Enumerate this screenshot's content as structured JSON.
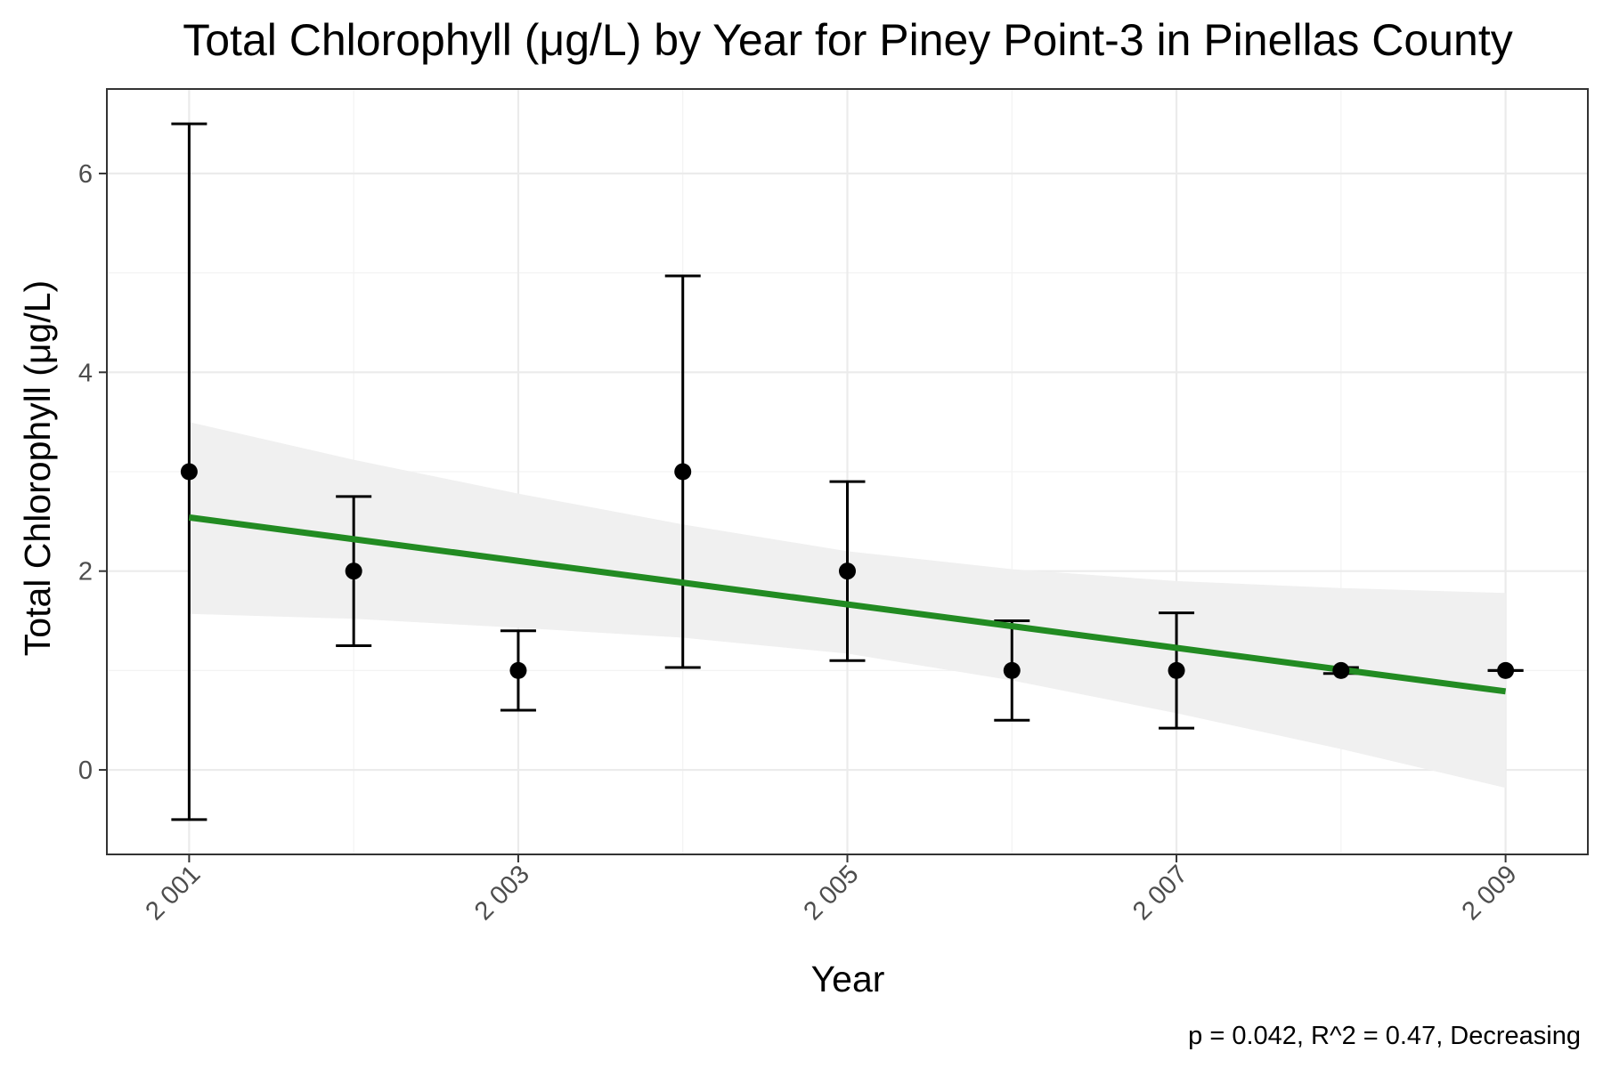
{
  "chart_data": {
    "type": "scatter",
    "title": "Total Chlorophyll (μg/L) by Year for Piney Point-3 in Pinellas County",
    "xlabel": "Year",
    "ylabel": "Total Chlorophyll (μg/L)",
    "caption": "p = 0.042, R^2 = 0.47, Decreasing",
    "xlim": [
      2000.5,
      2009.5
    ],
    "ylim": [
      -0.85,
      6.85
    ],
    "x_ticks": [
      2001,
      2003,
      2005,
      2007,
      2009
    ],
    "x_tick_labels": [
      "2 001",
      "2 003",
      "2 005",
      "2 007",
      "2 009"
    ],
    "y_ticks": [
      0,
      2,
      4,
      6
    ],
    "y_tick_labels": [
      "0",
      "2",
      "4",
      "6"
    ],
    "grid": true,
    "series": [
      {
        "type": "errorbar-points",
        "x": [
          2001,
          2002,
          2003,
          2004,
          2005,
          2006,
          2007,
          2008,
          2009
        ],
        "y": [
          3,
          2,
          1,
          3,
          2,
          1,
          1,
          1,
          1
        ],
        "y_low": [
          -0.5,
          1.25,
          0.6,
          1.03,
          1.1,
          0.5,
          0.42,
          0.97,
          1.0
        ],
        "y_high": [
          6.5,
          2.75,
          1.4,
          4.97,
          2.9,
          1.5,
          1.58,
          1.03,
          1.0
        ],
        "color": "#000000"
      },
      {
        "type": "trend-line",
        "x": [
          2001,
          2009
        ],
        "y": [
          2.54,
          0.79
        ],
        "color": "#228b22"
      },
      {
        "type": "confidence-band",
        "x": [
          2001,
          2002,
          2003,
          2004,
          2005,
          2006,
          2007,
          2008,
          2009
        ],
        "upper": [
          3.5,
          3.12,
          2.78,
          2.47,
          2.2,
          2.02,
          1.9,
          1.83,
          1.78
        ],
        "lower": [
          1.57,
          1.52,
          1.43,
          1.33,
          1.17,
          0.9,
          0.57,
          0.21,
          -0.18
        ],
        "color": "#f0f0f0"
      }
    ],
    "colors": {
      "panel_border": "#333333",
      "grid_major": "#ebebeb",
      "grid_minor": "#f3f3f3",
      "tick_label": "#4d4d4d"
    }
  }
}
